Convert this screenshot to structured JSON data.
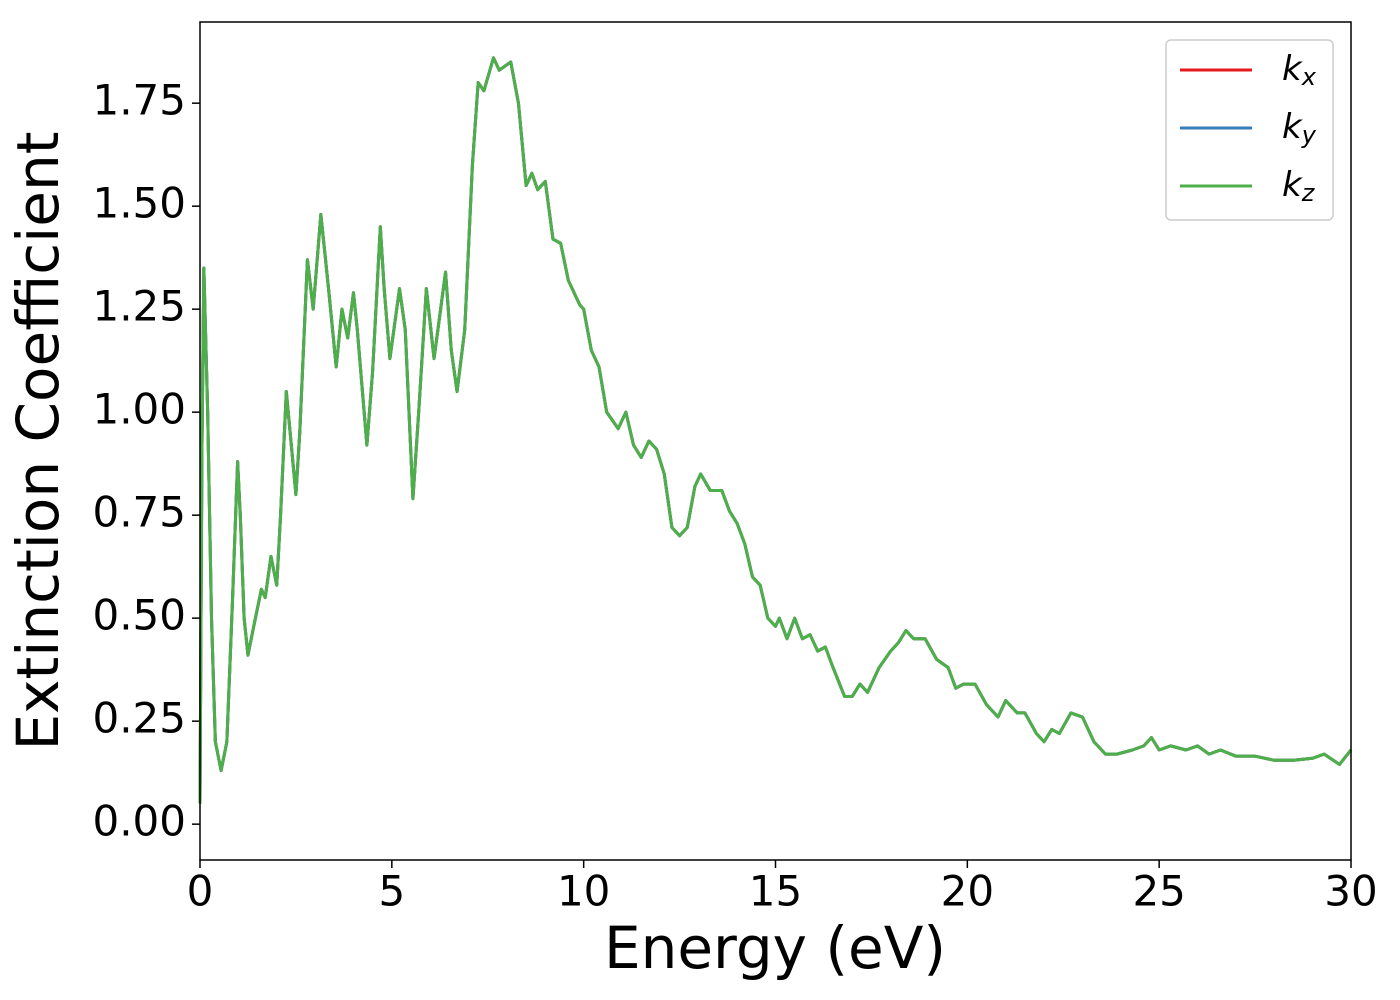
{
  "chart_data": {
    "type": "line",
    "xlabel": "Energy (eV)",
    "ylabel": "Extinction Coefficient",
    "x": [
      0,
      0.05,
      0.1,
      0.2,
      0.3,
      0.4,
      0.55,
      0.7,
      0.85,
      0.98,
      1.05,
      1.15,
      1.25,
      1.4,
      1.6,
      1.7,
      1.85,
      2.0,
      2.1,
      2.25,
      2.35,
      2.5,
      2.6,
      2.8,
      2.95,
      3.15,
      3.35,
      3.55,
      3.7,
      3.85,
      4.0,
      4.1,
      4.35,
      4.5,
      4.7,
      4.8,
      4.95,
      5.2,
      5.35,
      5.55,
      5.7,
      5.9,
      6.1,
      6.2,
      6.4,
      6.55,
      6.7,
      6.9,
      7.1,
      7.25,
      7.4,
      7.65,
      7.8,
      8.1,
      8.3,
      8.5,
      8.65,
      8.8,
      9.0,
      9.2,
      9.4,
      9.6,
      9.9,
      10.0,
      10.2,
      10.4,
      10.6,
      10.9,
      11.1,
      11.3,
      11.5,
      11.7,
      11.9,
      12.1,
      12.3,
      12.5,
      12.7,
      12.9,
      13.05,
      13.3,
      13.6,
      13.8,
      14.0,
      14.2,
      14.4,
      14.6,
      14.8,
      15.0,
      15.1,
      15.3,
      15.5,
      15.7,
      15.9,
      16.1,
      16.3,
      16.5,
      16.8,
      17.0,
      17.2,
      17.4,
      17.7,
      18.0,
      18.2,
      18.4,
      18.6,
      18.9,
      19.2,
      19.5,
      19.7,
      19.9,
      20.2,
      20.5,
      20.8,
      21.0,
      21.3,
      21.5,
      21.8,
      22.0,
      22.2,
      22.4,
      22.7,
      23.0,
      23.3,
      23.6,
      23.9,
      24.3,
      24.6,
      24.8,
      25.0,
      25.3,
      25.7,
      26.0,
      26.3,
      26.6,
      27.0,
      27.5,
      28.0,
      28.5,
      29.0,
      29.3,
      29.7,
      30.0
    ],
    "series": [
      {
        "name": "kx",
        "color": "#e41a1c",
        "values": [
          0.05,
          0.9,
          1.35,
          1.0,
          0.5,
          0.2,
          0.13,
          0.2,
          0.55,
          0.88,
          0.75,
          0.5,
          0.41,
          0.48,
          0.57,
          0.55,
          0.65,
          0.58,
          0.75,
          1.05,
          0.95,
          0.8,
          0.95,
          1.37,
          1.25,
          1.48,
          1.3,
          1.11,
          1.25,
          1.18,
          1.29,
          1.2,
          0.92,
          1.1,
          1.45,
          1.3,
          1.13,
          1.3,
          1.2,
          0.79,
          1.0,
          1.3,
          1.13,
          1.2,
          1.34,
          1.15,
          1.05,
          1.2,
          1.6,
          1.8,
          1.78,
          1.86,
          1.83,
          1.85,
          1.75,
          1.55,
          1.58,
          1.54,
          1.56,
          1.42,
          1.41,
          1.32,
          1.26,
          1.25,
          1.15,
          1.11,
          1.0,
          0.96,
          1.0,
          0.92,
          0.89,
          0.93,
          0.91,
          0.85,
          0.72,
          0.7,
          0.72,
          0.82,
          0.85,
          0.81,
          0.81,
          0.76,
          0.73,
          0.68,
          0.6,
          0.58,
          0.5,
          0.48,
          0.5,
          0.45,
          0.5,
          0.45,
          0.46,
          0.42,
          0.43,
          0.38,
          0.31,
          0.31,
          0.34,
          0.32,
          0.38,
          0.42,
          0.44,
          0.47,
          0.45,
          0.45,
          0.4,
          0.38,
          0.33,
          0.34,
          0.34,
          0.29,
          0.26,
          0.3,
          0.27,
          0.27,
          0.22,
          0.2,
          0.23,
          0.22,
          0.27,
          0.26,
          0.2,
          0.17,
          0.17,
          0.18,
          0.19,
          0.21,
          0.18,
          0.19,
          0.18,
          0.19,
          0.17,
          0.18,
          0.165,
          0.165,
          0.155,
          0.155,
          0.16,
          0.17,
          0.145,
          0.18
        ]
      },
      {
        "name": "ky",
        "color": "#377eb8",
        "values": [
          0.05,
          0.9,
          1.35,
          1.0,
          0.5,
          0.2,
          0.13,
          0.2,
          0.55,
          0.88,
          0.75,
          0.5,
          0.41,
          0.48,
          0.57,
          0.55,
          0.65,
          0.58,
          0.75,
          1.05,
          0.95,
          0.8,
          0.95,
          1.37,
          1.25,
          1.48,
          1.3,
          1.11,
          1.25,
          1.18,
          1.29,
          1.2,
          0.92,
          1.1,
          1.45,
          1.3,
          1.13,
          1.3,
          1.2,
          0.79,
          1.0,
          1.3,
          1.13,
          1.2,
          1.34,
          1.15,
          1.05,
          1.2,
          1.6,
          1.8,
          1.78,
          1.86,
          1.83,
          1.85,
          1.75,
          1.55,
          1.58,
          1.54,
          1.56,
          1.42,
          1.41,
          1.32,
          1.26,
          1.25,
          1.15,
          1.11,
          1.0,
          0.96,
          1.0,
          0.92,
          0.89,
          0.93,
          0.91,
          0.85,
          0.72,
          0.7,
          0.72,
          0.82,
          0.85,
          0.81,
          0.81,
          0.76,
          0.73,
          0.68,
          0.6,
          0.58,
          0.5,
          0.48,
          0.5,
          0.45,
          0.5,
          0.45,
          0.46,
          0.42,
          0.43,
          0.38,
          0.31,
          0.31,
          0.34,
          0.32,
          0.38,
          0.42,
          0.44,
          0.47,
          0.45,
          0.45,
          0.4,
          0.38,
          0.33,
          0.34,
          0.34,
          0.29,
          0.26,
          0.3,
          0.27,
          0.27,
          0.22,
          0.2,
          0.23,
          0.22,
          0.27,
          0.26,
          0.2,
          0.17,
          0.17,
          0.18,
          0.19,
          0.21,
          0.18,
          0.19,
          0.18,
          0.19,
          0.17,
          0.18,
          0.165,
          0.165,
          0.155,
          0.155,
          0.16,
          0.17,
          0.145,
          0.18
        ]
      },
      {
        "name": "kz",
        "color": "#4daf4a",
        "values": [
          0.05,
          0.9,
          1.35,
          1.0,
          0.5,
          0.2,
          0.13,
          0.2,
          0.55,
          0.88,
          0.75,
          0.5,
          0.41,
          0.48,
          0.57,
          0.55,
          0.65,
          0.58,
          0.75,
          1.05,
          0.95,
          0.8,
          0.95,
          1.37,
          1.25,
          1.48,
          1.3,
          1.11,
          1.25,
          1.18,
          1.29,
          1.2,
          0.92,
          1.1,
          1.45,
          1.3,
          1.13,
          1.3,
          1.2,
          0.79,
          1.0,
          1.3,
          1.13,
          1.2,
          1.34,
          1.15,
          1.05,
          1.2,
          1.6,
          1.8,
          1.78,
          1.86,
          1.83,
          1.85,
          1.75,
          1.55,
          1.58,
          1.54,
          1.56,
          1.42,
          1.41,
          1.32,
          1.26,
          1.25,
          1.15,
          1.11,
          1.0,
          0.96,
          1.0,
          0.92,
          0.89,
          0.93,
          0.91,
          0.85,
          0.72,
          0.7,
          0.72,
          0.82,
          0.85,
          0.81,
          0.81,
          0.76,
          0.73,
          0.68,
          0.6,
          0.58,
          0.5,
          0.48,
          0.5,
          0.45,
          0.5,
          0.45,
          0.46,
          0.42,
          0.43,
          0.38,
          0.31,
          0.31,
          0.34,
          0.32,
          0.38,
          0.42,
          0.44,
          0.47,
          0.45,
          0.45,
          0.4,
          0.38,
          0.33,
          0.34,
          0.34,
          0.29,
          0.26,
          0.3,
          0.27,
          0.27,
          0.22,
          0.2,
          0.23,
          0.22,
          0.27,
          0.26,
          0.2,
          0.17,
          0.17,
          0.18,
          0.19,
          0.21,
          0.18,
          0.19,
          0.18,
          0.19,
          0.17,
          0.18,
          0.165,
          0.165,
          0.155,
          0.155,
          0.16,
          0.17,
          0.145,
          0.18
        ]
      }
    ],
    "xlim": [
      0,
      30
    ],
    "xticks": [
      0,
      5,
      10,
      15,
      20,
      25,
      30
    ],
    "ylim": [
      -0.087,
      1.947
    ],
    "yticks": [
      {
        "value": 0,
        "label": "0.00"
      },
      {
        "value": 0.25,
        "label": "0.25"
      },
      {
        "value": 0.5,
        "label": "0.50"
      },
      {
        "value": 0.75,
        "label": "0.75"
      },
      {
        "value": 1.0,
        "label": "1.00"
      },
      {
        "value": 1.25,
        "label": "1.25"
      },
      {
        "value": 1.5,
        "label": "1.50"
      },
      {
        "value": 1.75,
        "label": "1.75"
      }
    ],
    "grid": false,
    "legend": "upper right"
  }
}
